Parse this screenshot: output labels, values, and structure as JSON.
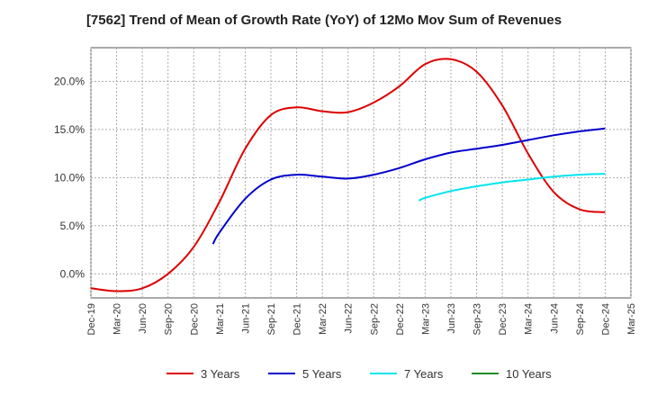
{
  "chart_data": {
    "type": "line",
    "title": "[7562]  Trend of Mean of Growth Rate (YoY) of 12Mo Mov Sum of Revenues",
    "xlabel": "",
    "ylabel": "",
    "ylim": [
      -2.5,
      23.5
    ],
    "yticks": [
      0,
      5,
      10,
      15,
      20
    ],
    "ytick_labels": [
      "0.0%",
      "5.0%",
      "10.0%",
      "15.0%",
      "20.0%"
    ],
    "x_tick_labels": [
      "Dec-19",
      "Mar-20",
      "Jun-20",
      "Sep-20",
      "Dec-20",
      "Mar-21",
      "Jun-21",
      "Sep-21",
      "Dec-21",
      "Mar-22",
      "Jun-22",
      "Sep-22",
      "Dec-22",
      "Mar-23",
      "Jun-23",
      "Sep-23",
      "Dec-23",
      "Mar-24",
      "Jun-24",
      "Sep-24",
      "Dec-24",
      "Mar-25"
    ],
    "grid": true,
    "legend_position": "bottom",
    "series": [
      {
        "name": "3 Years",
        "color": "#dd0000",
        "points": [
          [
            0,
            -1.5
          ],
          [
            1,
            -1.8
          ],
          [
            2,
            -1.5
          ],
          [
            3,
            0.0
          ],
          [
            4,
            2.8
          ],
          [
            5,
            7.5
          ],
          [
            6,
            13.0
          ],
          [
            7,
            16.5
          ],
          [
            8,
            17.3
          ],
          [
            9,
            16.9
          ],
          [
            10,
            16.8
          ],
          [
            11,
            17.8
          ],
          [
            12,
            19.5
          ],
          [
            13,
            21.8
          ],
          [
            14,
            22.3
          ],
          [
            15,
            21.0
          ],
          [
            16,
            17.5
          ],
          [
            17,
            12.5
          ],
          [
            18,
            8.5
          ],
          [
            19,
            6.7
          ],
          [
            20,
            6.4
          ]
        ]
      },
      {
        "name": "5 Years",
        "color": "#0000cc",
        "points": [
          [
            4.75,
            3.1
          ],
          [
            5,
            4.3
          ],
          [
            6,
            7.8
          ],
          [
            7,
            9.8
          ],
          [
            8,
            10.3
          ],
          [
            9,
            10.1
          ],
          [
            10,
            9.9
          ],
          [
            11,
            10.3
          ],
          [
            12,
            11.0
          ],
          [
            13,
            11.9
          ],
          [
            14,
            12.6
          ],
          [
            15,
            13.0
          ],
          [
            16,
            13.4
          ],
          [
            17,
            13.9
          ],
          [
            18,
            14.4
          ],
          [
            19,
            14.8
          ],
          [
            20,
            15.1
          ]
        ]
      },
      {
        "name": "7 Years",
        "color": "#00e5ee",
        "points": [
          [
            12.75,
            7.6
          ],
          [
            13,
            7.9
          ],
          [
            14,
            8.6
          ],
          [
            15,
            9.1
          ],
          [
            16,
            9.5
          ],
          [
            17,
            9.8
          ],
          [
            18,
            10.1
          ],
          [
            19,
            10.3
          ],
          [
            20,
            10.4
          ]
        ]
      },
      {
        "name": "10 Years",
        "color": "#228b22",
        "points": []
      }
    ]
  }
}
